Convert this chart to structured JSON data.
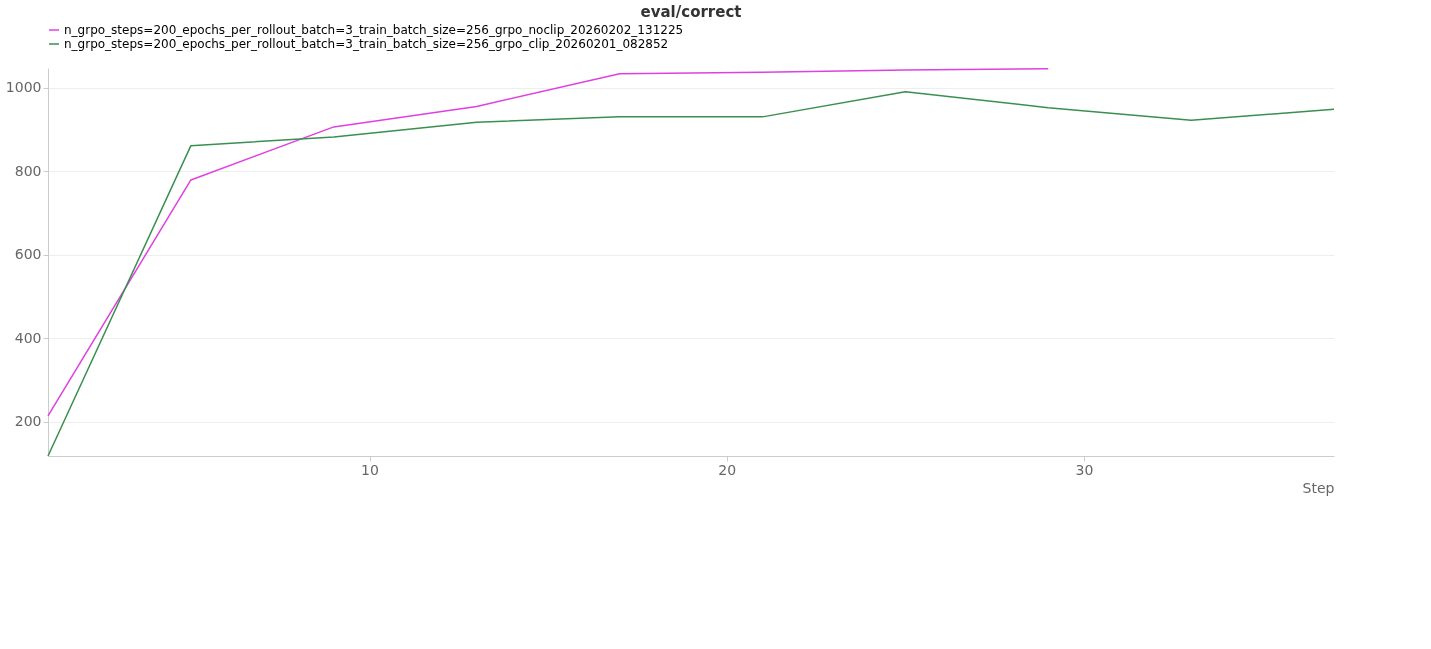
{
  "chart_data": {
    "type": "line",
    "title": "eval/correct",
    "xlabel": "Step",
    "xlim": [
      1,
      37
    ],
    "xticks": [
      10,
      20,
      30
    ],
    "ylim": [
      118,
      1047
    ],
    "yticks": [
      200,
      400,
      600,
      800,
      1000
    ],
    "grid": "y",
    "legend": "top",
    "line_style": "solid",
    "series": [
      {
        "name": "n_grpo_steps=200_epochs_per_rollout_batch=3_train_batch_size=256_grpo_noclip_20260202_131225",
        "color": "#e040e0",
        "x": [
          1,
          5,
          9,
          13,
          17,
          21,
          25,
          29
        ],
        "values": [
          214,
          779,
          906,
          955,
          1033,
          1037,
          1042,
          1045
        ]
      },
      {
        "name": "n_grpo_steps=200_epochs_per_rollout_batch=3_train_batch_size=256_grpo_clip_20260201_082852",
        "color": "#3a8f50",
        "x": [
          1,
          5,
          9,
          13,
          17,
          21,
          25,
          29,
          33,
          37
        ],
        "values": [
          118,
          861,
          882,
          917,
          930,
          930,
          990,
          952,
          922,
          948
        ]
      }
    ]
  }
}
